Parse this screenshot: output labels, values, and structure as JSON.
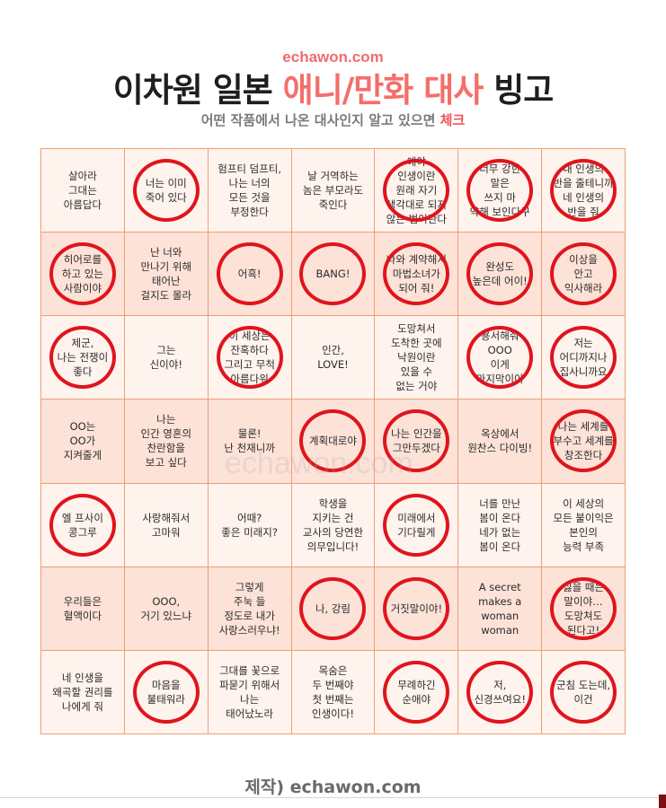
{
  "header": {
    "site": "echawon.com",
    "title_part1": "이차원 일본 ",
    "title_highlight": "애니/만화 대사",
    "title_part2": " 빙고",
    "subtitle_main": "어떤 작품에서 나온 대사인지 알고 있으면 ",
    "subtitle_check": "체크"
  },
  "watermark": "echawon.com",
  "footer": "제작) echawon.com",
  "colors": {
    "accent": "#f46f6a",
    "circle": "#e0141c",
    "grid_line": "#ec9f74",
    "cell_light": "#fff3ee",
    "cell_dark": "#fde2d8"
  },
  "bingo": [
    [
      {
        "text": "살아라\n그대는\n아름답다",
        "checked": false
      },
      {
        "text": "너는 이미\n죽어 있다",
        "checked": true
      },
      {
        "text": "험프티 덤프티,\n나는 너의\n모든 것을\n부정한다",
        "checked": false
      },
      {
        "text": "날 거역하는\n놈은 부모라도\n죽인다",
        "checked": false
      },
      {
        "text": "얘야\n인생이란\n원래 자기\n생각대로 되지\n않는 법이란다",
        "checked": true
      },
      {
        "text": "너무 강한\n말은\n쓰지 마\n약해 보인다구",
        "checked": true
      },
      {
        "text": "내 인생의\n반을 줄테니까\n네 인생의\n반을 줘",
        "checked": true
      }
    ],
    [
      {
        "text": "히어로를\n하고 있는\n사람이야",
        "checked": true
      },
      {
        "text": "난 너와\n만나기 위해\n태어난\n걸지도 몰라",
        "checked": false
      },
      {
        "text": "어흑!",
        "checked": true
      },
      {
        "text": "BANG!",
        "checked": true
      },
      {
        "text": "나와 계약해서\n마법소녀가\n되어 줘!",
        "checked": true
      },
      {
        "text": "완성도\n높은데 어이!",
        "checked": true
      },
      {
        "text": "이상을\n안고\n익사해라",
        "checked": true
      }
    ],
    [
      {
        "text": "제군,\n나는 전쟁이\n좋다",
        "checked": true
      },
      {
        "text": "그는\n신이야!",
        "checked": false
      },
      {
        "text": "이 세상은\n잔혹하다\n그리고 무척\n아름다워",
        "checked": true
      },
      {
        "text": "인간,\nLOVE!",
        "checked": false
      },
      {
        "text": "도망쳐서\n도착한 곳에\n낙원이란\n있을 수\n없는 거야",
        "checked": false
      },
      {
        "text": "용서해줘\nOOO\n이게\n마지막이야",
        "checked": true
      },
      {
        "text": "저는\n어디까지나\n집사니까요",
        "checked": true
      }
    ],
    [
      {
        "text": "OO는\nOO가\n지켜줄게",
        "checked": false
      },
      {
        "text": "나는\n인간 영혼의\n찬란함을\n보고 싶다",
        "checked": false
      },
      {
        "text": "물론!\n난 천재니까",
        "checked": false
      },
      {
        "text": "계획대로야",
        "checked": true
      },
      {
        "text": "나는 인간을\n그만두겠다",
        "checked": true
      },
      {
        "text": "옥상에서\n원찬스 다이빙!",
        "checked": false
      },
      {
        "text": "나는 세계를\n부수고 세계를\n창조한다",
        "checked": true
      }
    ],
    [
      {
        "text": "엘 프사이\n콩그루",
        "checked": true
      },
      {
        "text": "사랑해줘서\n고마워",
        "checked": false
      },
      {
        "text": "어때?\n좋은 미래지?",
        "checked": false
      },
      {
        "text": "학생을\n지키는 건\n교사의 당연한\n의무입니다!",
        "checked": false
      },
      {
        "text": "미래에서\n기다릴게",
        "checked": true
      },
      {
        "text": "너를 만난\n봄이 온다\n네가 없는\n봄이 온다",
        "checked": false
      },
      {
        "text": "이 세상의\n모든 불이익은\n본인의\n능력 부족",
        "checked": false
      }
    ],
    [
      {
        "text": "우리들은\n혈액이다",
        "checked": false
      },
      {
        "text": "OOO,\n거기 있느냐",
        "checked": false
      },
      {
        "text": "그렇게\n주눅 들\n정도로 내가\n사랑스러우냐!",
        "checked": false
      },
      {
        "text": "나, 강림",
        "checked": true
      },
      {
        "text": "거짓말이야!",
        "checked": true
      },
      {
        "text": "A secret\nmakes a\nwoman\nwoman",
        "checked": false
      },
      {
        "text": "싫을 때는\n말이야…\n도망쳐도\n된다고!",
        "checked": true
      }
    ],
    [
      {
        "text": "네 인생을\n왜곡할 권리를\n나에게 줘",
        "checked": false
      },
      {
        "text": "마음을\n불태워라",
        "checked": true
      },
      {
        "text": "그대를 꽃으로\n파묻기 위해서\n나는\n태어났노라",
        "checked": false
      },
      {
        "text": "목숨은\n두 번째야\n첫 번째는\n인생이다!",
        "checked": false
      },
      {
        "text": "무례하긴\n순애야",
        "checked": true
      },
      {
        "text": "저,\n신경쓰여요!",
        "checked": true
      },
      {
        "text": "군침 도는데,\n이건",
        "checked": true
      }
    ]
  ]
}
